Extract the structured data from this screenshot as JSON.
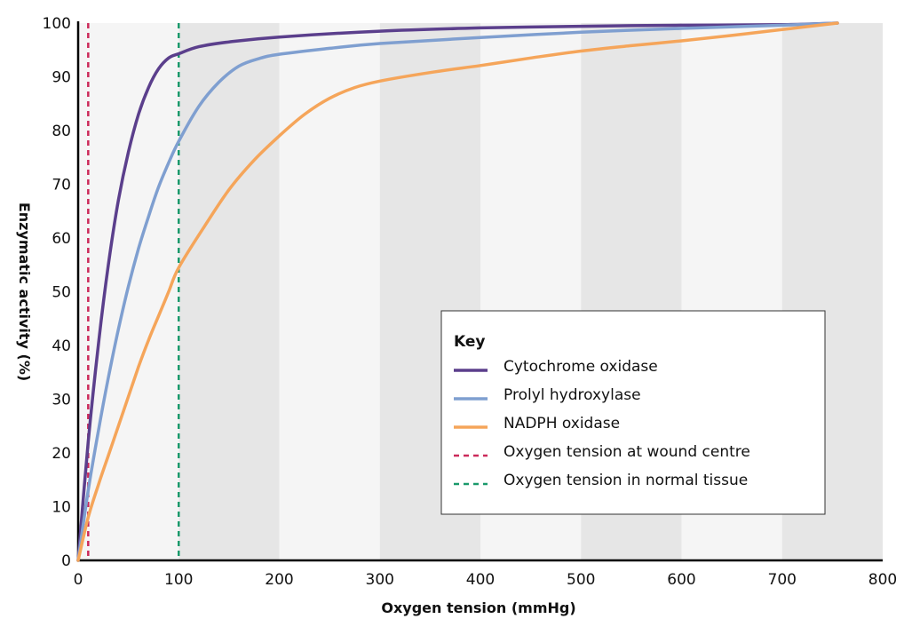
{
  "chart_data": {
    "type": "line",
    "title": "",
    "xlabel": "Oxygen tension (mmHg)",
    "ylabel": "Enzymatic activity (%)",
    "xlim": [
      0,
      800
    ],
    "ylim": [
      0,
      100
    ],
    "x_ticks": [
      0,
      100,
      200,
      300,
      400,
      500,
      600,
      700,
      800
    ],
    "y_ticks": [
      0,
      10,
      20,
      30,
      40,
      50,
      60,
      70,
      80,
      90,
      100
    ],
    "background": "alternating vertical bands (light grey / white) every 100 mmHg",
    "grid": false,
    "legend_title": "Key",
    "legend_position": "center-right",
    "series": [
      {
        "name": "Cytochrome oxidase",
        "color": "#5b3f8c",
        "style": "solid",
        "points": [
          [
            0,
            0
          ],
          [
            10,
            22
          ],
          [
            20,
            40
          ],
          [
            30,
            55
          ],
          [
            40,
            67
          ],
          [
            50,
            76
          ],
          [
            60,
            83
          ],
          [
            70,
            88
          ],
          [
            80,
            91.5
          ],
          [
            90,
            93.5
          ],
          [
            100,
            94.3
          ],
          [
            120,
            95.6
          ],
          [
            150,
            96.5
          ],
          [
            200,
            97.4
          ],
          [
            300,
            98.5
          ],
          [
            400,
            99.1
          ],
          [
            500,
            99.4
          ],
          [
            600,
            99.6
          ],
          [
            700,
            99.7
          ],
          [
            755,
            100
          ]
        ]
      },
      {
        "name": "Prolyl hydroxylase",
        "color": "#7f9fd0",
        "style": "solid",
        "points": [
          [
            0,
            0
          ],
          [
            10,
            13
          ],
          [
            20,
            24
          ],
          [
            30,
            34
          ],
          [
            40,
            43
          ],
          [
            50,
            51
          ],
          [
            60,
            58
          ],
          [
            70,
            64
          ],
          [
            80,
            69.5
          ],
          [
            90,
            74
          ],
          [
            100,
            78
          ],
          [
            120,
            84.5
          ],
          [
            140,
            89
          ],
          [
            160,
            92
          ],
          [
            180,
            93.4
          ],
          [
            200,
            94.2
          ],
          [
            250,
            95.3
          ],
          [
            300,
            96.2
          ],
          [
            400,
            97.3
          ],
          [
            500,
            98.3
          ],
          [
            600,
            99
          ],
          [
            700,
            99.6
          ],
          [
            755,
            100
          ]
        ]
      },
      {
        "name": "NADPH oxidase",
        "color": "#f5a55a",
        "style": "solid",
        "points": [
          [
            0,
            0
          ],
          [
            10,
            8
          ],
          [
            20,
            14
          ],
          [
            30,
            19.5
          ],
          [
            40,
            25
          ],
          [
            50,
            30.5
          ],
          [
            60,
            36
          ],
          [
            70,
            41
          ],
          [
            80,
            45.5
          ],
          [
            90,
            50
          ],
          [
            100,
            54.5
          ],
          [
            125,
            62
          ],
          [
            150,
            69
          ],
          [
            175,
            74.5
          ],
          [
            200,
            79
          ],
          [
            225,
            83
          ],
          [
            250,
            86
          ],
          [
            275,
            88
          ],
          [
            300,
            89.2
          ],
          [
            350,
            90.8
          ],
          [
            400,
            92.1
          ],
          [
            450,
            93.5
          ],
          [
            500,
            94.8
          ],
          [
            550,
            95.8
          ],
          [
            600,
            96.7
          ],
          [
            650,
            97.7
          ],
          [
            700,
            98.8
          ],
          [
            755,
            100
          ]
        ]
      },
      {
        "name": "Oxygen tension at wound centre",
        "color": "#cc2a5a",
        "style": "dashed",
        "x": 10
      },
      {
        "name": "Oxygen tension in normal tissue",
        "color": "#1a9a6c",
        "style": "dashed",
        "x": 100
      }
    ]
  }
}
